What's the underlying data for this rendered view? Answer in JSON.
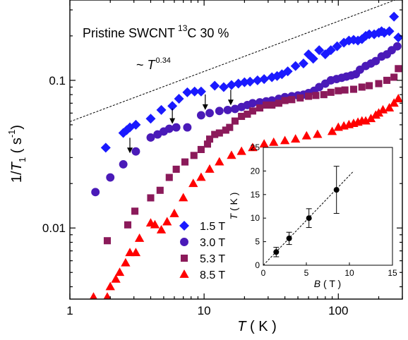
{
  "chart_data": [
    {
      "type": "scatter",
      "title": "Pristine SWCNT",
      "title_super": "13",
      "title_suffix": "C 30 %",
      "xlabel": {
        "italic": "T",
        "rest": " ( K )"
      },
      "ylabel": {
        "prefix": "1/",
        "italic": "T",
        "sub": "1",
        "rest": "  ( s",
        "sup": "-1",
        "close": ")"
      },
      "xscale": "log",
      "yscale": "log",
      "xlim": [
        1,
        300
      ],
      "ylim": [
        0.0033,
        0.35
      ],
      "xticks": [
        1,
        10,
        100
      ],
      "xtick_labels": [
        "1",
        "10",
        "100"
      ],
      "yticks": [
        0.01,
        0.1
      ],
      "ytick_labels": [
        "0.01",
        "0.1"
      ],
      "legend_position": "bottom-center",
      "power_law_label": {
        "prefix": "~ ",
        "italic": "T",
        "sup": "0.34"
      },
      "power_law_line": {
        "exponent": 0.34,
        "x": [
          1,
          300
        ],
        "y": [
          0.0525,
          0.365
        ]
      },
      "arrow_markers_x": [
        2.8,
        5.8,
        10.2,
        15.8
      ],
      "series": [
        {
          "name": "1.5 T",
          "marker": "diamond",
          "color": "#1a1aff",
          "x": [
            1.85,
            2.5,
            2.65,
            2.8,
            3.1,
            4.0,
            4.8,
            5.8,
            6.5,
            7.5,
            8.5,
            9.5,
            12,
            14,
            16,
            18,
            20,
            22,
            25,
            28,
            32,
            35,
            38,
            42,
            48,
            55,
            60,
            65,
            72,
            80,
            88,
            98,
            110,
            120,
            130,
            140,
            150,
            160,
            170,
            185,
            200,
            210,
            220,
            240,
            260,
            280
          ],
          "y": [
            0.035,
            0.044,
            0.046,
            0.048,
            0.05,
            0.055,
            0.063,
            0.067,
            0.075,
            0.083,
            0.084,
            0.084,
            0.092,
            0.09,
            0.093,
            0.095,
            0.097,
            0.098,
            0.1,
            0.102,
            0.105,
            0.107,
            0.11,
            0.115,
            0.125,
            0.13,
            0.15,
            0.14,
            0.16,
            0.15,
            0.16,
            0.17,
            0.18,
            0.186,
            0.188,
            0.186,
            0.19,
            0.2,
            0.205,
            0.205,
            0.21,
            0.215,
            0.21,
            0.215,
            0.27,
            0.195
          ]
        },
        {
          "name": "3.0 T",
          "marker": "circle",
          "color": "#4a1ab8",
          "x": [
            1.55,
            2.0,
            2.5,
            3.1,
            4.0,
            4.5,
            5.0,
            5.5,
            6.2,
            7.5,
            9.5,
            11,
            13,
            15,
            17,
            19,
            21,
            23,
            26,
            29,
            32,
            36,
            40,
            45,
            50,
            55,
            60,
            66,
            72,
            80,
            88,
            97,
            106,
            115,
            125,
            135,
            145,
            160,
            175,
            190,
            210,
            230,
            250,
            275
          ],
          "y": [
            0.0175,
            0.022,
            0.027,
            0.033,
            0.041,
            0.043,
            0.045,
            0.047,
            0.048,
            0.048,
            0.058,
            0.06,
            0.062,
            0.063,
            0.064,
            0.066,
            0.068,
            0.07,
            0.071,
            0.072,
            0.073,
            0.075,
            0.077,
            0.078,
            0.079,
            0.08,
            0.082,
            0.085,
            0.09,
            0.095,
            0.1,
            0.102,
            0.104,
            0.106,
            0.108,
            0.11,
            0.118,
            0.125,
            0.13,
            0.135,
            0.145,
            0.15,
            0.16,
            0.17
          ]
        },
        {
          "name": "5.3 T",
          "marker": "square",
          "color": "#8b1a5a",
          "x": [
            1.9,
            2.7,
            3.05,
            4.0,
            4.7,
            5.5,
            6.2,
            7.2,
            8.4,
            9.5,
            10.6,
            11,
            12,
            13,
            14.5,
            15.5,
            17,
            19,
            21,
            23,
            26,
            29,
            32,
            36,
            40,
            45,
            52,
            60,
            68,
            78,
            88,
            100,
            112,
            130,
            150,
            170,
            200,
            230,
            260,
            280
          ],
          "y": [
            0.0082,
            0.0105,
            0.013,
            0.016,
            0.018,
            0.022,
            0.025,
            0.028,
            0.031,
            0.034,
            0.037,
            0.04,
            0.043,
            0.044,
            0.046,
            0.048,
            0.053,
            0.057,
            0.059,
            0.062,
            0.065,
            0.068,
            0.068,
            0.07,
            0.073,
            0.074,
            0.076,
            0.078,
            0.079,
            0.08,
            0.083,
            0.085,
            0.086,
            0.087,
            0.09,
            0.092,
            0.095,
            0.1,
            0.105,
            0.12
          ]
        },
        {
          "name": "8.5 T",
          "marker": "triangle",
          "color": "#ff0000",
          "x": [
            1.5,
            1.9,
            2.0,
            2.2,
            2.35,
            2.6,
            2.8,
            3.1,
            3.3,
            4.0,
            4.3,
            4.8,
            5.3,
            6.0,
            7.0,
            8.3,
            9.5,
            11,
            13,
            16,
            19,
            23,
            28,
            33,
            40,
            48,
            58,
            70,
            90,
            100,
            110,
            120,
            130,
            140,
            150,
            160,
            175,
            190,
            200,
            215,
            240,
            260,
            280
          ],
          "y": [
            0.0034,
            0.0034,
            0.004,
            0.0045,
            0.005,
            0.0058,
            0.0068,
            0.0068,
            0.0085,
            0.0108,
            0.0105,
            0.0097,
            0.011,
            0.0125,
            0.016,
            0.02,
            0.022,
            0.025,
            0.028,
            0.031,
            0.033,
            0.035,
            0.037,
            0.038,
            0.039,
            0.04,
            0.042,
            0.043,
            0.045,
            0.048,
            0.049,
            0.05,
            0.051,
            0.052,
            0.053,
            0.053,
            0.055,
            0.058,
            0.06,
            0.063,
            0.065,
            0.07,
            0.075
          ]
        }
      ]
    },
    {
      "type": "scatter",
      "xlabel": {
        "italic": "B",
        "rest": " ( T )"
      },
      "ylabel": {
        "italic": "T",
        "rest": " ( K )"
      },
      "xlim": [
        0,
        15
      ],
      "ylim": [
        0,
        25
      ],
      "xticks": [
        0,
        5,
        10,
        15
      ],
      "yticks": [
        0,
        5,
        10,
        15,
        20,
        25
      ],
      "fit_line": {
        "x": [
          0,
          10.5
        ],
        "y": [
          0,
          20
        ]
      },
      "points": [
        {
          "x": 1.5,
          "y": 2.8,
          "yerr": 1.0
        },
        {
          "x": 3.0,
          "y": 5.7,
          "yerr": 1.3
        },
        {
          "x": 5.3,
          "y": 10.0,
          "yerr": 2.0
        },
        {
          "x": 8.5,
          "y": 16.0,
          "yerr": 5.0
        }
      ]
    }
  ]
}
